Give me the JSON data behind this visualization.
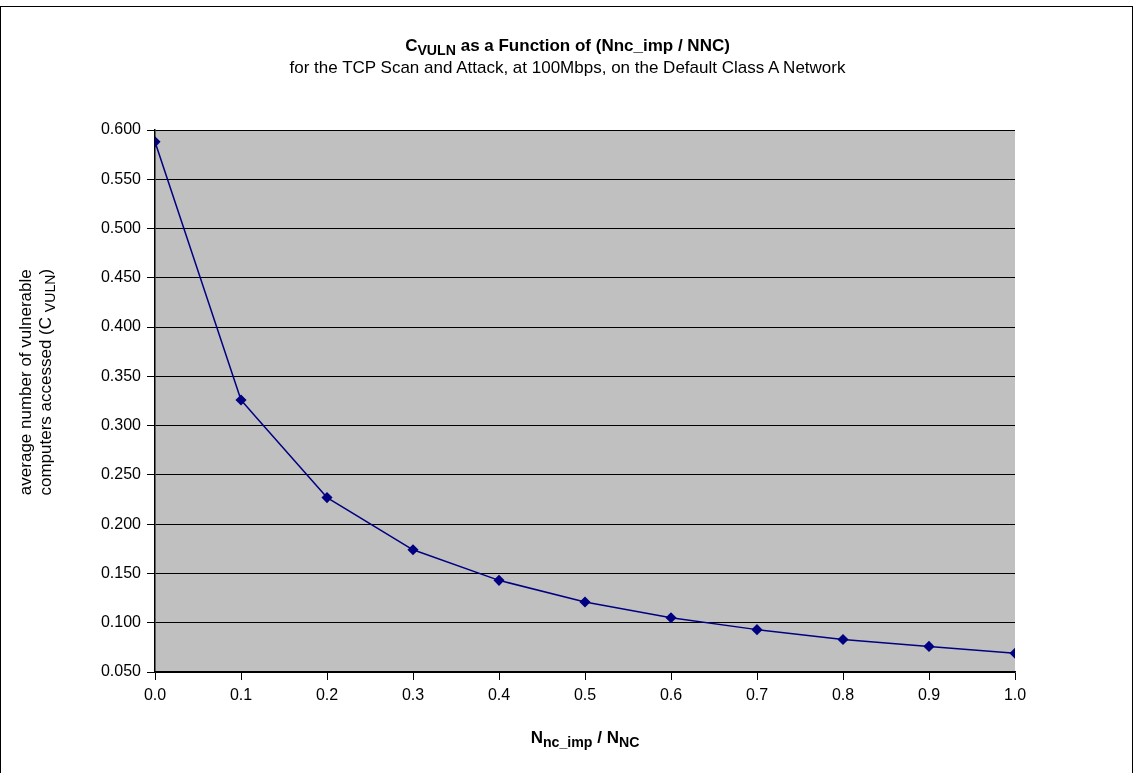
{
  "chart_data": {
    "type": "line",
    "title": "C$_{VULN}$ as a Function of (Nnc_imp / NNC)",
    "subtitle": "for the TCP Scan and Attack, at 100Mbps, on the Default Class A Network",
    "xlabel": "N$_{nc_imp}$ / N$_{NC}$",
    "ylabel": "average number of vulnerable computers accessed (C $_{VULN}$)",
    "x": [
      0,
      0.1,
      0.2,
      0.3,
      0.4,
      0.5,
      0.6,
      0.7,
      0.8,
      0.9,
      1.0
    ],
    "series": [
      {
        "color": "#000080",
        "values": [
          0.588,
          0.326,
          0.227,
          0.174,
          0.143,
          0.121,
          0.105,
          0.093,
          0.083,
          0.076,
          0.069
        ]
      }
    ],
    "xlim": [
      0,
      1
    ],
    "xticks": [
      {
        "value": 0,
        "label": "0.0"
      },
      {
        "value": 0.1,
        "label": "0.1"
      },
      {
        "value": 0.2,
        "label": "0.2"
      },
      {
        "value": 0.3,
        "label": "0.3"
      },
      {
        "value": 0.4,
        "label": "0.4"
      },
      {
        "value": 0.5,
        "label": "0.5"
      },
      {
        "value": 0.6,
        "label": "0.6"
      },
      {
        "value": 0.7,
        "label": "0.7"
      },
      {
        "value": 0.8,
        "label": "0.8"
      },
      {
        "value": 0.9,
        "label": "0.9"
      },
      {
        "value": 1,
        "label": "1.0"
      }
    ],
    "ylim": [
      0.05,
      0.6
    ],
    "yticks": [
      {
        "value": 0.05,
        "label": "0.050"
      },
      {
        "value": 0.1,
        "label": "0.100"
      },
      {
        "value": 0.15,
        "label": "0.150"
      },
      {
        "value": 0.2,
        "label": "0.200"
      },
      {
        "value": 0.25,
        "label": "0.250"
      },
      {
        "value": 0.3,
        "label": "0.300"
      },
      {
        "value": 0.35,
        "label": "0.350"
      },
      {
        "value": 0.4,
        "label": "0.400"
      },
      {
        "value": 0.45,
        "label": "0.450"
      },
      {
        "value": 0.5,
        "label": "0.500"
      },
      {
        "value": 0.55,
        "label": "0.550"
      },
      {
        "value": 0.6,
        "label": "0.600"
      }
    ],
    "grid": "y",
    "legend": false,
    "marker": "diamond",
    "line_style": "solid"
  }
}
